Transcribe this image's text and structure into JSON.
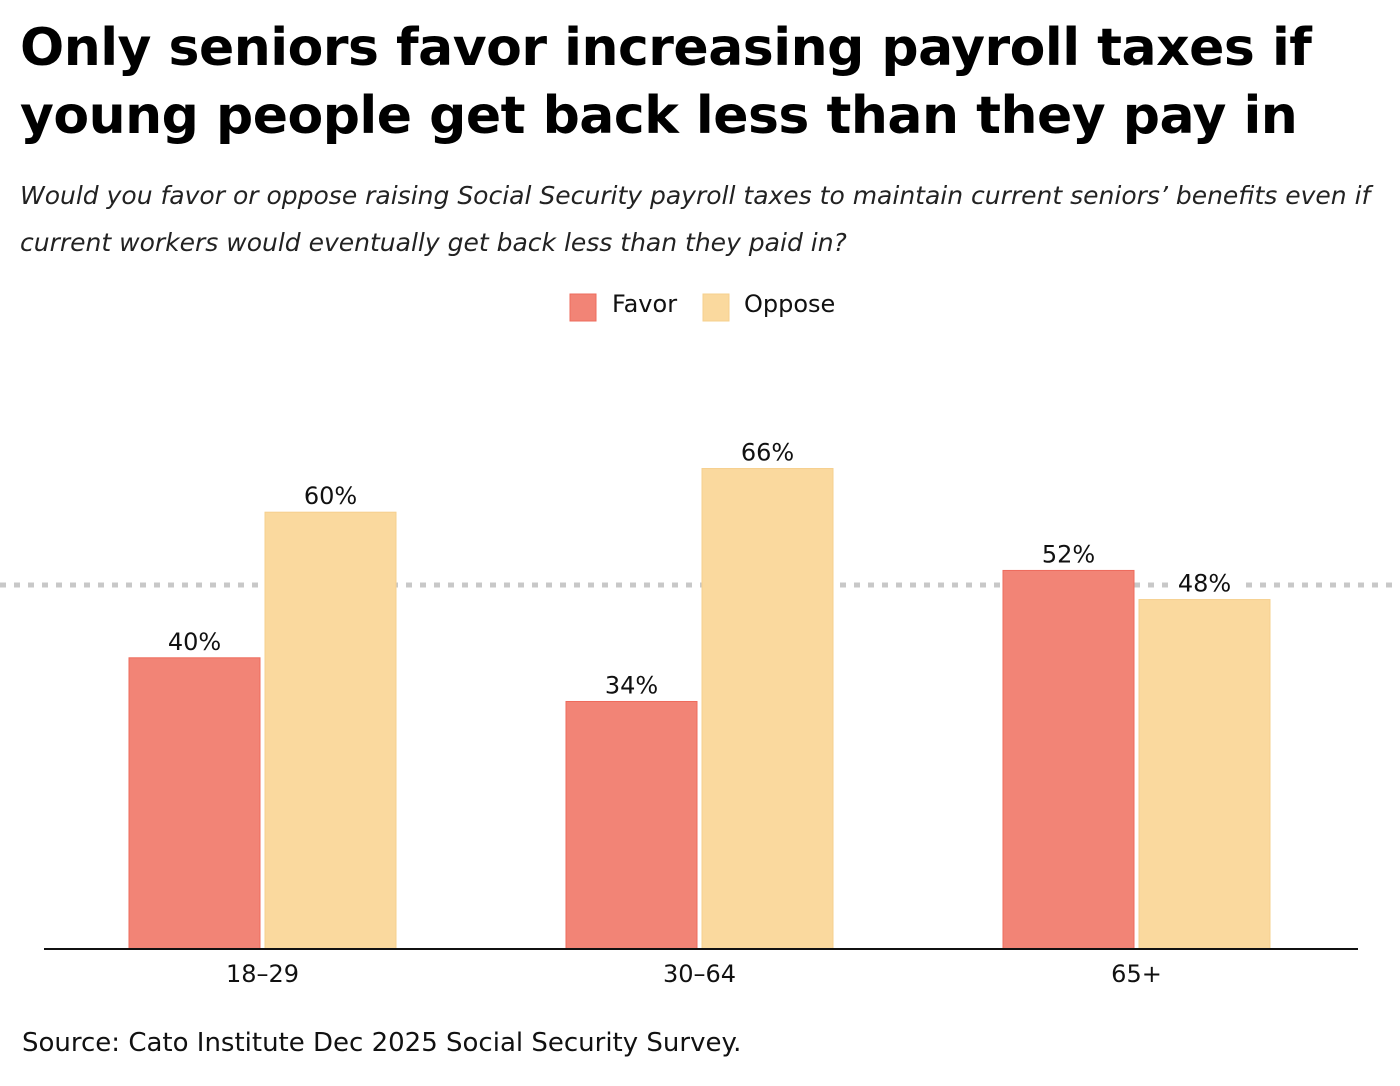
{
  "title": "Only seniors favor increasing payroll taxes if young people get back less than they pay in",
  "subtitle": "Would you favor or oppose raising Social Security payroll taxes to maintain current seniors’ benefits even if current workers would eventually get back less than they paid in?",
  "source": "Source: Cato Institute Dec 2025 Social Security Survey.",
  "chart_data": {
    "type": "bar",
    "categories": [
      "18–29",
      "30–64",
      "65+"
    ],
    "series": [
      {
        "name": "Favor",
        "values": [
          40,
          34,
          52
        ],
        "labels": [
          "40%",
          "34%",
          "52%"
        ],
        "color": "#F28476"
      },
      {
        "name": "Oppose",
        "values": [
          60,
          66,
          48
        ],
        "labels": [
          "60%",
          "66%",
          "48%"
        ],
        "color": "#FAD99E"
      }
    ],
    "reference_line": 50,
    "ylim": [
      0,
      66
    ],
    "legend": "top-center",
    "grid": false,
    "unit": "%"
  }
}
